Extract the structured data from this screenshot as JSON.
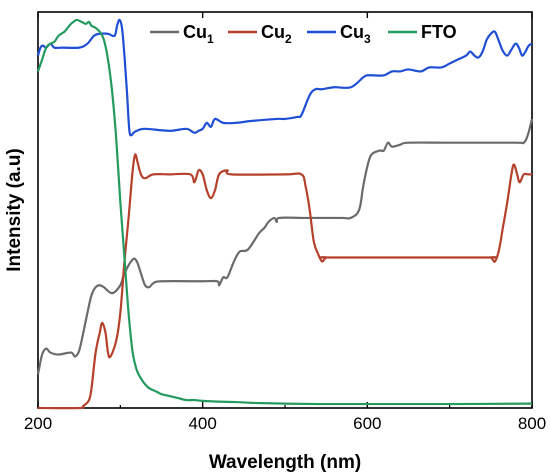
{
  "chart_data": {
    "type": "line",
    "title": "",
    "xlabel": "Wavelength (nm)",
    "ylabel": "Intensity (a.u)",
    "xlim": [
      200,
      800
    ],
    "ylim": [
      0,
      100
    ],
    "x_ticks": [
      "200",
      "400",
      "600",
      "800"
    ],
    "x_tick_values": [
      200,
      400,
      600,
      800
    ],
    "y_ticks": [],
    "grid": false,
    "legend_position": "top",
    "series": [
      {
        "name": "Cu1",
        "label_main": "Cu",
        "label_sub": "1",
        "color": "#6b6b6b",
        "points": [
          [
            200,
            8.5
          ],
          [
            205,
            13.5
          ],
          [
            210,
            15
          ],
          [
            215,
            14
          ],
          [
            225,
            13.5
          ],
          [
            240,
            14
          ],
          [
            245,
            13
          ],
          [
            250,
            14.5
          ],
          [
            255,
            19
          ],
          [
            260,
            24
          ],
          [
            265,
            28.5
          ],
          [
            270,
            30.5
          ],
          [
            275,
            31
          ],
          [
            280,
            30.5
          ],
          [
            290,
            29
          ],
          [
            300,
            31
          ],
          [
            305,
            34
          ],
          [
            315,
            37.5
          ],
          [
            320,
            37
          ],
          [
            325,
            34
          ],
          [
            330,
            31
          ],
          [
            335,
            30.5
          ],
          [
            340,
            31.5
          ],
          [
            350,
            32
          ],
          [
            400,
            32
          ],
          [
            418,
            32
          ],
          [
            420,
            31
          ],
          [
            425,
            33
          ],
          [
            430,
            33
          ],
          [
            438,
            37
          ],
          [
            445,
            39.5
          ],
          [
            455,
            40
          ],
          [
            468,
            44
          ],
          [
            475,
            45.5
          ],
          [
            480,
            47
          ],
          [
            487,
            48
          ],
          [
            490,
            47
          ],
          [
            493,
            48
          ],
          [
            520,
            48
          ],
          [
            540,
            48
          ],
          [
            570,
            48
          ],
          [
            580,
            48
          ],
          [
            590,
            50
          ],
          [
            595,
            56
          ],
          [
            600,
            61
          ],
          [
            605,
            64
          ],
          [
            615,
            65
          ],
          [
            620,
            65
          ],
          [
            625,
            67
          ],
          [
            630,
            66
          ],
          [
            640,
            66.5
          ],
          [
            650,
            67
          ],
          [
            700,
            67
          ],
          [
            780,
            67
          ],
          [
            790,
            67
          ],
          [
            795,
            69
          ],
          [
            800,
            73
          ]
        ]
      },
      {
        "name": "Cu2",
        "label_main": "Cu",
        "label_sub": "2",
        "color": "#b5412c",
        "points": [
          [
            200,
            0
          ],
          [
            250,
            0
          ],
          [
            255,
            0.5
          ],
          [
            262,
            2
          ],
          [
            265,
            5
          ],
          [
            270,
            14
          ],
          [
            275,
            19
          ],
          [
            278,
            21.5
          ],
          [
            282,
            19
          ],
          [
            285,
            14
          ],
          [
            288,
            13
          ],
          [
            295,
            17
          ],
          [
            300,
            24
          ],
          [
            305,
            37
          ],
          [
            310,
            48
          ],
          [
            315,
            60
          ],
          [
            318,
            64
          ],
          [
            321,
            62
          ],
          [
            325,
            59
          ],
          [
            330,
            58
          ],
          [
            340,
            59
          ],
          [
            360,
            59
          ],
          [
            385,
            59
          ],
          [
            390,
            57
          ],
          [
            395,
            60
          ],
          [
            400,
            59
          ],
          [
            405,
            55
          ],
          [
            410,
            53
          ],
          [
            415,
            55
          ],
          [
            420,
            59
          ],
          [
            430,
            60
          ],
          [
            435,
            59
          ],
          [
            500,
            59
          ],
          [
            520,
            59
          ],
          [
            525,
            56
          ],
          [
            530,
            50
          ],
          [
            535,
            42
          ],
          [
            540,
            39
          ],
          [
            545,
            37
          ],
          [
            550,
            38
          ],
          [
            560,
            38
          ],
          [
            740,
            38
          ],
          [
            750,
            38
          ],
          [
            755,
            37
          ],
          [
            760,
            40
          ],
          [
            765,
            46
          ],
          [
            770,
            52
          ],
          [
            775,
            59
          ],
          [
            778,
            61.5
          ],
          [
            782,
            59
          ],
          [
            785,
            57
          ],
          [
            790,
            59
          ],
          [
            795,
            59
          ],
          [
            800,
            59
          ]
        ]
      },
      {
        "name": "Cu3",
        "label_main": "Cu",
        "label_sub": "3",
        "color": "#1f4fd4",
        "points": [
          [
            200,
            89
          ],
          [
            203,
            91
          ],
          [
            206,
            91.5
          ],
          [
            210,
            91
          ],
          [
            215,
            92
          ],
          [
            220,
            91
          ],
          [
            230,
            91
          ],
          [
            250,
            91
          ],
          [
            260,
            92
          ],
          [
            268,
            94
          ],
          [
            275,
            94.5
          ],
          [
            285,
            94.5
          ],
          [
            293,
            94
          ],
          [
            296,
            96.5
          ],
          [
            299,
            98
          ],
          [
            302,
            96
          ],
          [
            305,
            89
          ],
          [
            308,
            80
          ],
          [
            311,
            70
          ],
          [
            314,
            69
          ],
          [
            316,
            69.5
          ],
          [
            320,
            70
          ],
          [
            330,
            70.5
          ],
          [
            360,
            70
          ],
          [
            380,
            70.5
          ],
          [
            390,
            69.5
          ],
          [
            395,
            70
          ],
          [
            400,
            70.5
          ],
          [
            405,
            72
          ],
          [
            410,
            71
          ],
          [
            415,
            73
          ],
          [
            425,
            72
          ],
          [
            440,
            72
          ],
          [
            460,
            72.5
          ],
          [
            490,
            73
          ],
          [
            500,
            73
          ],
          [
            515,
            73.5
          ],
          [
            520,
            74
          ],
          [
            530,
            79
          ],
          [
            537,
            80.5
          ],
          [
            545,
            80.5
          ],
          [
            560,
            81
          ],
          [
            580,
            81
          ],
          [
            595,
            83.5
          ],
          [
            600,
            84
          ],
          [
            608,
            84
          ],
          [
            620,
            84
          ],
          [
            630,
            85
          ],
          [
            640,
            85
          ],
          [
            650,
            85.5
          ],
          [
            665,
            85
          ],
          [
            675,
            86
          ],
          [
            690,
            86
          ],
          [
            700,
            87
          ],
          [
            710,
            88
          ],
          [
            720,
            89
          ],
          [
            725,
            90
          ],
          [
            730,
            89
          ],
          [
            735,
            88.5
          ],
          [
            740,
            90
          ],
          [
            745,
            93
          ],
          [
            750,
            94.5
          ],
          [
            755,
            95
          ],
          [
            760,
            92.5
          ],
          [
            765,
            90
          ],
          [
            770,
            89
          ],
          [
            775,
            90.5
          ],
          [
            780,
            92
          ],
          [
            784,
            91
          ],
          [
            788,
            89
          ],
          [
            792,
            90
          ],
          [
            796,
            91.5
          ],
          [
            800,
            92
          ]
        ]
      },
      {
        "name": "FTO",
        "label_main": "FTO",
        "label_sub": "",
        "color": "#249a5f",
        "points": [
          [
            200,
            85
          ],
          [
            205,
            88
          ],
          [
            210,
            91
          ],
          [
            215,
            92
          ],
          [
            220,
            92.5
          ],
          [
            225,
            94
          ],
          [
            232,
            95
          ],
          [
            236,
            96
          ],
          [
            240,
            97
          ],
          [
            243,
            97.5
          ],
          [
            247,
            98
          ],
          [
            253,
            97.5
          ],
          [
            258,
            97
          ],
          [
            262,
            97.5
          ],
          [
            265,
            96.5
          ],
          [
            270,
            96
          ],
          [
            275,
            95
          ],
          [
            280,
            93
          ],
          [
            285,
            88
          ],
          [
            290,
            80
          ],
          [
            295,
            68
          ],
          [
            300,
            52
          ],
          [
            305,
            38
          ],
          [
            310,
            24
          ],
          [
            315,
            14
          ],
          [
            320,
            9.5
          ],
          [
            325,
            7.5
          ],
          [
            330,
            6
          ],
          [
            335,
            5
          ],
          [
            340,
            4.5
          ],
          [
            345,
            4
          ],
          [
            350,
            3.5
          ],
          [
            360,
            3
          ],
          [
            370,
            2.5
          ],
          [
            380,
            2
          ],
          [
            390,
            2
          ],
          [
            400,
            1.8
          ],
          [
            420,
            1.6
          ],
          [
            440,
            1.5
          ],
          [
            460,
            1.3
          ],
          [
            480,
            1.2
          ],
          [
            500,
            1.1
          ],
          [
            540,
            1
          ],
          [
            600,
            1
          ],
          [
            700,
            1
          ],
          [
            800,
            1.1
          ]
        ]
      }
    ]
  }
}
